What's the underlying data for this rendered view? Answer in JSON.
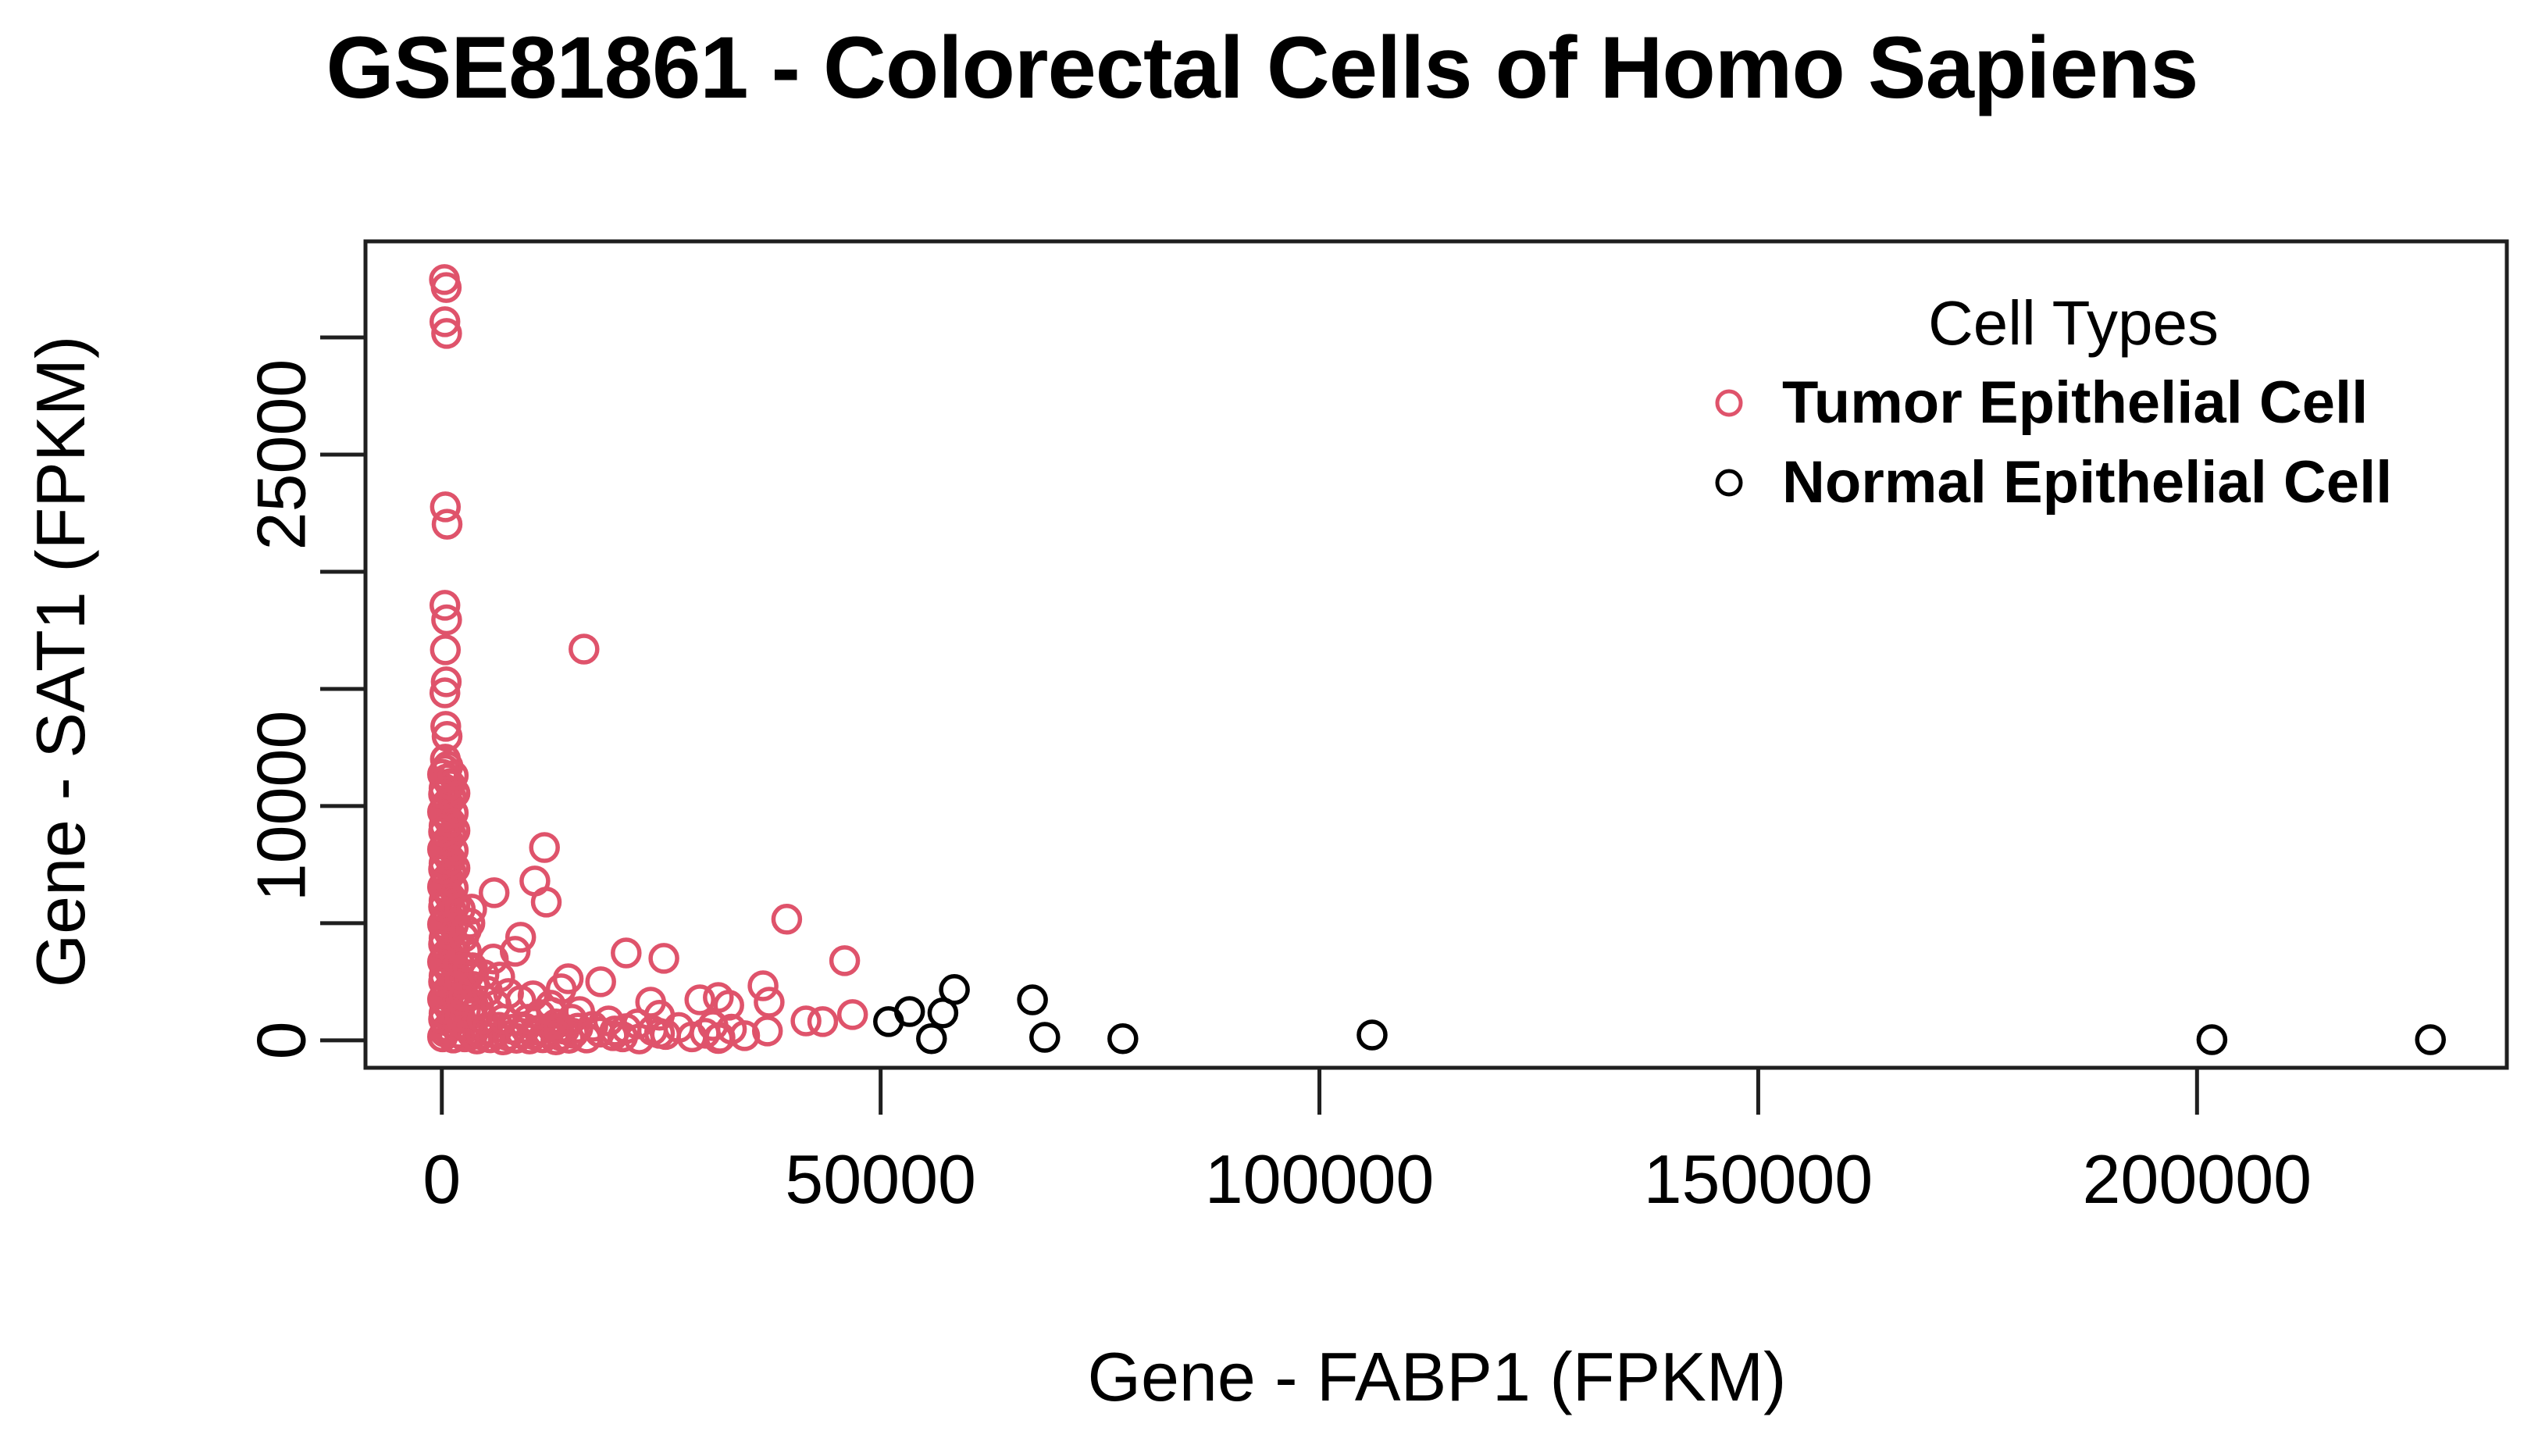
{
  "title": "GSE81861 - Colorectal Cells of Homo Sapiens",
  "axes": {
    "x": {
      "label": "Gene - FABP1 (FPKM)",
      "range": [
        -8700,
        235300
      ],
      "ticks": [
        0,
        50000,
        100000,
        150000,
        200000
      ],
      "tick_labels": {
        "0": "0",
        "50000": "50000",
        "100000": "100000",
        "150000": "150000",
        "200000": "200000"
      }
    },
    "y": {
      "label": "Gene - SAT1 (FPKM)",
      "range": [
        -1170,
        34100
      ],
      "ticks": [
        0,
        5000,
        10000,
        15000,
        20000,
        25000,
        30000
      ],
      "tick_labels": {
        "0": "0",
        "10000": "10000",
        "25000": "25000"
      }
    }
  },
  "legend": {
    "title": "Cell Types",
    "items": [
      {
        "label": "Tumor Epithelial Cell",
        "color": "#DF536B"
      },
      {
        "label": "Normal Epithelial Cell",
        "color": "#000000"
      }
    ]
  },
  "chart_data": {
    "type": "scatter",
    "title": "GSE81861 - Colorectal Cells of Homo Sapiens",
    "xlabel": "Gene - FABP1 (FPKM)",
    "ylabel": "Gene - SAT1 (FPKM)",
    "xlim": [
      -8700,
      235300
    ],
    "ylim": [
      -1170,
      34100
    ],
    "grid": false,
    "legend_position": "top-right",
    "marker": "open-circle",
    "series": [
      {
        "name": "Tumor Epithelial Cell",
        "color": "#DF536B",
        "points": [
          [
            300,
            32470
          ],
          [
            500,
            32130
          ],
          [
            350,
            30670
          ],
          [
            550,
            30170
          ],
          [
            400,
            22770
          ],
          [
            600,
            22030
          ],
          [
            350,
            18570
          ],
          [
            550,
            17950
          ],
          [
            400,
            16670
          ],
          [
            500,
            15300
          ],
          [
            350,
            14830
          ],
          [
            450,
            13400
          ],
          [
            600,
            12970
          ],
          [
            400,
            12000
          ],
          [
            80,
            150
          ],
          [
            350,
            350
          ],
          [
            700,
            550
          ],
          [
            1100,
            750
          ],
          [
            1500,
            950
          ],
          [
            250,
            1150
          ],
          [
            900,
            1350
          ],
          [
            550,
            1550
          ],
          [
            80,
            1750
          ],
          [
            350,
            1950
          ],
          [
            700,
            2150
          ],
          [
            1100,
            2350
          ],
          [
            1500,
            2550
          ],
          [
            250,
            2750
          ],
          [
            900,
            2950
          ],
          [
            550,
            3150
          ],
          [
            80,
            3350
          ],
          [
            350,
            3550
          ],
          [
            700,
            3750
          ],
          [
            1100,
            3950
          ],
          [
            1500,
            4150
          ],
          [
            250,
            4350
          ],
          [
            900,
            4550
          ],
          [
            550,
            4750
          ],
          [
            80,
            4950
          ],
          [
            350,
            5150
          ],
          [
            700,
            5350
          ],
          [
            1100,
            5550
          ],
          [
            1500,
            5750
          ],
          [
            250,
            5950
          ],
          [
            900,
            6150
          ],
          [
            550,
            6350
          ],
          [
            80,
            6550
          ],
          [
            350,
            6750
          ],
          [
            700,
            6950
          ],
          [
            1100,
            7150
          ],
          [
            1500,
            7350
          ],
          [
            250,
            7550
          ],
          [
            900,
            7750
          ],
          [
            550,
            7950
          ],
          [
            80,
            8150
          ],
          [
            350,
            8350
          ],
          [
            700,
            8550
          ],
          [
            1100,
            8750
          ],
          [
            1500,
            8950
          ],
          [
            250,
            9150
          ],
          [
            900,
            9350
          ],
          [
            550,
            9550
          ],
          [
            80,
            9750
          ],
          [
            350,
            9950
          ],
          [
            700,
            10150
          ],
          [
            1100,
            10350
          ],
          [
            1500,
            10550
          ],
          [
            250,
            10750
          ],
          [
            900,
            10950
          ],
          [
            550,
            11150
          ],
          [
            80,
            11350
          ],
          [
            350,
            11550
          ],
          [
            700,
            11700
          ],
          [
            1300,
            100
          ],
          [
            600,
            500
          ],
          [
            200,
            900
          ],
          [
            1000,
            1300
          ],
          [
            1300,
            1700
          ],
          [
            600,
            2100
          ],
          [
            200,
            2500
          ],
          [
            1000,
            2900
          ],
          [
            1300,
            3300
          ],
          [
            600,
            3700
          ],
          [
            200,
            4100
          ],
          [
            1000,
            4500
          ],
          [
            1300,
            4900
          ],
          [
            600,
            5300
          ],
          [
            200,
            5700
          ],
          [
            1000,
            6100
          ],
          [
            1300,
            6500
          ],
          [
            600,
            6900
          ],
          [
            200,
            7300
          ],
          [
            1000,
            7700
          ],
          [
            1300,
            8100
          ],
          [
            600,
            8500
          ],
          [
            200,
            8900
          ],
          [
            1000,
            9300
          ],
          [
            1300,
            9700
          ],
          [
            600,
            10100
          ],
          [
            200,
            10500
          ],
          [
            1000,
            10900
          ],
          [
            1300,
            11300
          ],
          [
            2000,
            300
          ],
          [
            2600,
            150
          ],
          [
            3200,
            400
          ],
          [
            2300,
            700
          ],
          [
            2900,
            550
          ],
          [
            3500,
            250
          ],
          [
            2100,
            1000
          ],
          [
            2700,
            1300
          ],
          [
            3300,
            1100
          ],
          [
            2200,
            1700
          ],
          [
            3000,
            2000
          ],
          [
            3600,
            1500
          ],
          [
            2400,
            2400
          ],
          [
            3100,
            2800
          ],
          [
            2000,
            3300
          ],
          [
            2800,
            3800
          ],
          [
            3500,
            3100
          ],
          [
            2500,
            4400
          ],
          [
            3200,
            5000
          ],
          [
            2100,
            5600
          ],
          [
            4000,
            60
          ],
          [
            4500,
            240
          ],
          [
            5000,
            430
          ],
          [
            5500,
            110
          ],
          [
            6000,
            330
          ],
          [
            6500,
            560
          ],
          [
            7000,
            20
          ],
          [
            7500,
            200
          ],
          [
            8000,
            470
          ],
          [
            8500,
            90
          ],
          [
            9000,
            300
          ],
          [
            9500,
            520
          ],
          [
            10000,
            60
          ],
          [
            10500,
            240
          ],
          [
            11000,
            430
          ],
          [
            11500,
            110
          ],
          [
            12000,
            330
          ],
          [
            12500,
            560
          ],
          [
            13000,
            20
          ],
          [
            13500,
            200
          ],
          [
            14000,
            470
          ],
          [
            14500,
            90
          ],
          [
            15000,
            300
          ],
          [
            15500,
            520
          ],
          [
            16500,
            100
          ],
          [
            18000,
            350
          ],
          [
            19500,
            200
          ],
          [
            21000,
            500
          ],
          [
            22500,
            60
          ],
          [
            24000,
            420
          ],
          [
            25500,
            250
          ],
          [
            27000,
            550
          ],
          [
            28500,
            150
          ],
          [
            30000,
            300
          ],
          [
            31500,
            80
          ],
          [
            33000,
            480
          ],
          [
            34500,
            200
          ],
          [
            2100,
            2600
          ],
          [
            2500,
            1900
          ],
          [
            3000,
            3100
          ],
          [
            3600,
            2300
          ],
          [
            4200,
            1500
          ],
          [
            4800,
            2800
          ],
          [
            2800,
            4700
          ],
          [
            3400,
            5600
          ],
          [
            4600,
            900
          ],
          [
            5200,
            2100
          ],
          [
            6200,
            1500
          ],
          [
            7000,
            900
          ],
          [
            7600,
            2000
          ],
          [
            6600,
            2700
          ],
          [
            9000,
            1700
          ],
          [
            9800,
            900
          ],
          [
            10400,
            1900
          ],
          [
            11200,
            1100
          ],
          [
            12400,
            1500
          ],
          [
            13000,
            700
          ],
          [
            13600,
            2200
          ],
          [
            14800,
            900
          ],
          [
            5870,
            3470
          ],
          [
            5960,
            6300
          ],
          [
            8360,
            3800
          ],
          [
            8980,
            4400
          ],
          [
            10600,
            6800
          ],
          [
            11700,
            8230
          ],
          [
            11900,
            5900
          ],
          [
            14400,
            2630
          ],
          [
            16200,
            16700
          ],
          [
            18100,
            2500
          ],
          [
            21000,
            3730
          ],
          [
            25300,
            3500
          ],
          [
            23800,
            1630
          ],
          [
            24800,
            1070
          ],
          [
            24800,
            300
          ],
          [
            29400,
            1730
          ],
          [
            31500,
            1830
          ],
          [
            32700,
            1500
          ],
          [
            30900,
            630
          ],
          [
            31700,
            130
          ],
          [
            36600,
            2330
          ],
          [
            37300,
            1630
          ],
          [
            37100,
            400
          ],
          [
            39300,
            5170
          ],
          [
            41500,
            830
          ],
          [
            43400,
            800
          ],
          [
            45900,
            3400
          ],
          [
            15700,
            1230
          ],
          [
            19000,
            830
          ],
          [
            19700,
            400
          ],
          [
            20600,
            150
          ],
          [
            22300,
            700
          ],
          [
            12500,
            1200
          ],
          [
            13300,
            500
          ],
          [
            17200,
            600
          ],
          [
            46800,
            1100
          ]
        ]
      },
      {
        "name": "Normal Epithelial Cell",
        "color": "#000000",
        "points": [
          [
            50900,
            800
          ],
          [
            53300,
            1230
          ],
          [
            55800,
            70
          ],
          [
            57100,
            1170
          ],
          [
            58400,
            2170
          ],
          [
            67300,
            1730
          ],
          [
            68700,
            130
          ],
          [
            77600,
            70
          ],
          [
            106000,
            230
          ],
          [
            201700,
            30
          ],
          [
            226600,
            30
          ]
        ]
      }
    ]
  }
}
